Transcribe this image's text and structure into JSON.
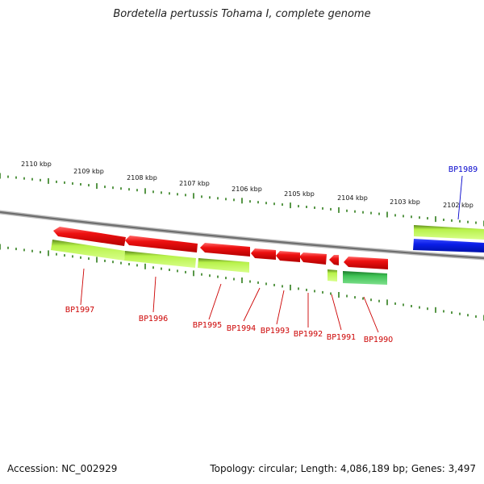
{
  "title": "Bordetella pertussis Tohama I, complete genome",
  "footer": {
    "accession": "Accession: NC_002929",
    "summary": "Topology: circular; Length: 4,086,189 bp; Genes: 3,497"
  },
  "colors": {
    "background": "#ffffff",
    "backbone": "#7a7a7a",
    "tick": "#2e7d1a",
    "forward_gene": "#ee1111",
    "reverse_gene": "#a6e83a",
    "reverse_gene_dark": "#39b54a",
    "highlight_gene": "#0a1ee8",
    "label_red": "#cc0000",
    "label_blue": "#0000cc"
  },
  "ruler": {
    "ticks": [
      "2110 kbp",
      "2109 kbp",
      "2108 kbp",
      "2107 kbp",
      "2106 kbp",
      "2105 kbp",
      "2104 kbp",
      "2103 kbp",
      "2102 kbp"
    ]
  },
  "genes": [
    {
      "id": "BP1997",
      "strand": "forward",
      "color": "red"
    },
    {
      "id": "BP1996",
      "strand": "forward",
      "color": "red"
    },
    {
      "id": "BP1995",
      "strand": "forward",
      "color": "red"
    },
    {
      "id": "BP1994",
      "strand": "forward",
      "color": "red"
    },
    {
      "id": "BP1993",
      "strand": "forward",
      "color": "red"
    },
    {
      "id": "BP1992",
      "strand": "forward",
      "color": "red"
    },
    {
      "id": "BP1991",
      "strand": "forward",
      "color": "red"
    },
    {
      "id": "BP1990",
      "strand": "forward",
      "color": "red"
    },
    {
      "id": "BP1989",
      "strand": "reverse",
      "color": "blue"
    }
  ]
}
